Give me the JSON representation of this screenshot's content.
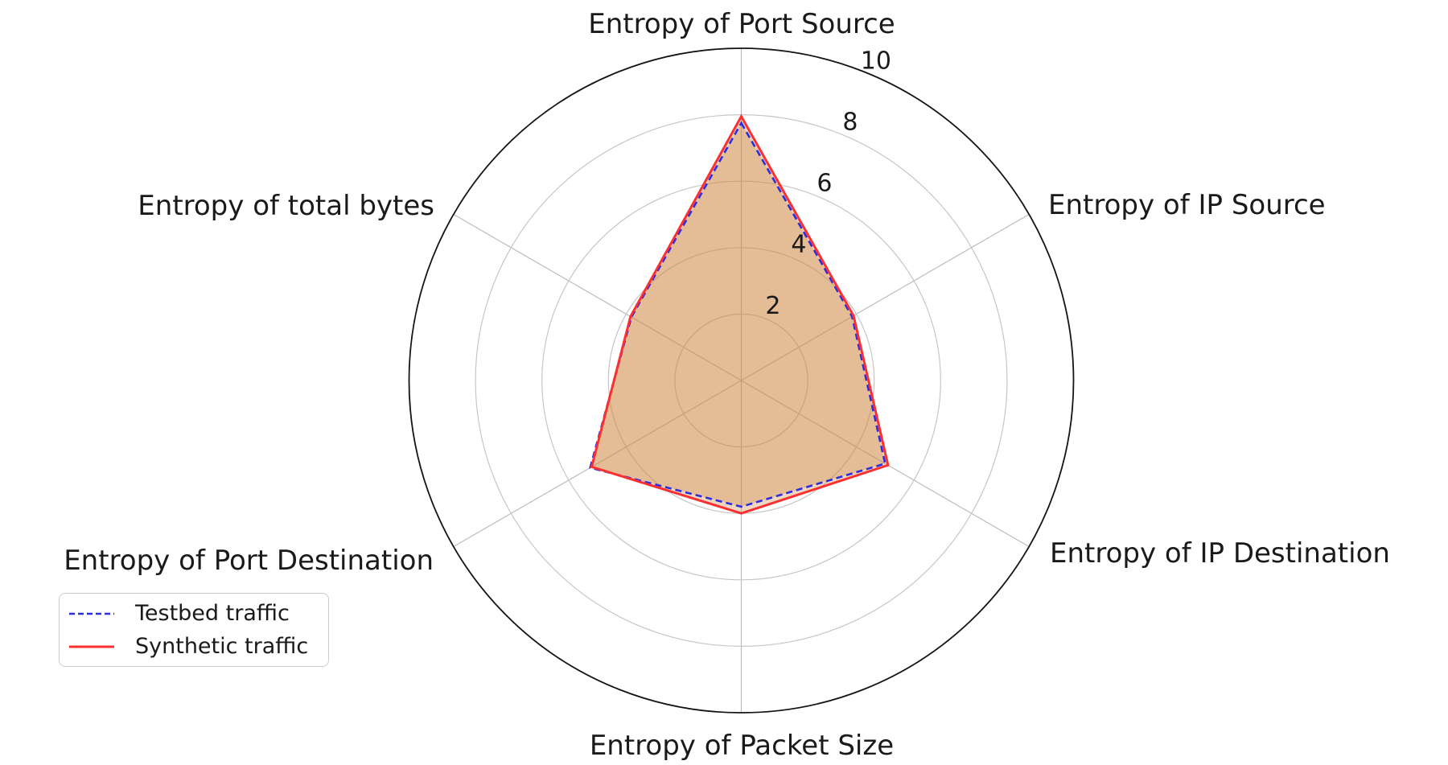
{
  "chart_data": {
    "type": "radar",
    "title": "",
    "categories": [
      "Entropy of Port Source",
      "Entropy of IP Source",
      "Entropy of IP Destination",
      "Entropy of Packet Size",
      "Entropy of Port Destination",
      "Entropy of total bytes"
    ],
    "series": [
      {
        "name": "Testbed traffic",
        "values": [
          7.75,
          3.85,
          5.0,
          3.8,
          5.25,
          3.82
        ],
        "color": "#2c2ce0",
        "dash": "8 5",
        "width": 2.6
      },
      {
        "name": "Synthetic traffic",
        "values": [
          7.95,
          3.9,
          5.1,
          4.0,
          5.2,
          3.85
        ],
        "color": "#fb3030",
        "dash": "",
        "width": 3
      }
    ],
    "radial_ticks": [
      "2",
      "4",
      "6",
      "8",
      "10"
    ],
    "radial_tick_values": [
      2,
      4,
      6,
      8,
      10
    ],
    "rmax": 10,
    "grid_on": true,
    "legend_position": "lower-left",
    "colors": {
      "fill": "#cd853f",
      "fill_opacity": 0.33,
      "ring_grid": "#c6c6c6",
      "spoke_grid": "#bdbdbd",
      "outer_spine": "#141414",
      "text": "#1a1a1a"
    }
  }
}
